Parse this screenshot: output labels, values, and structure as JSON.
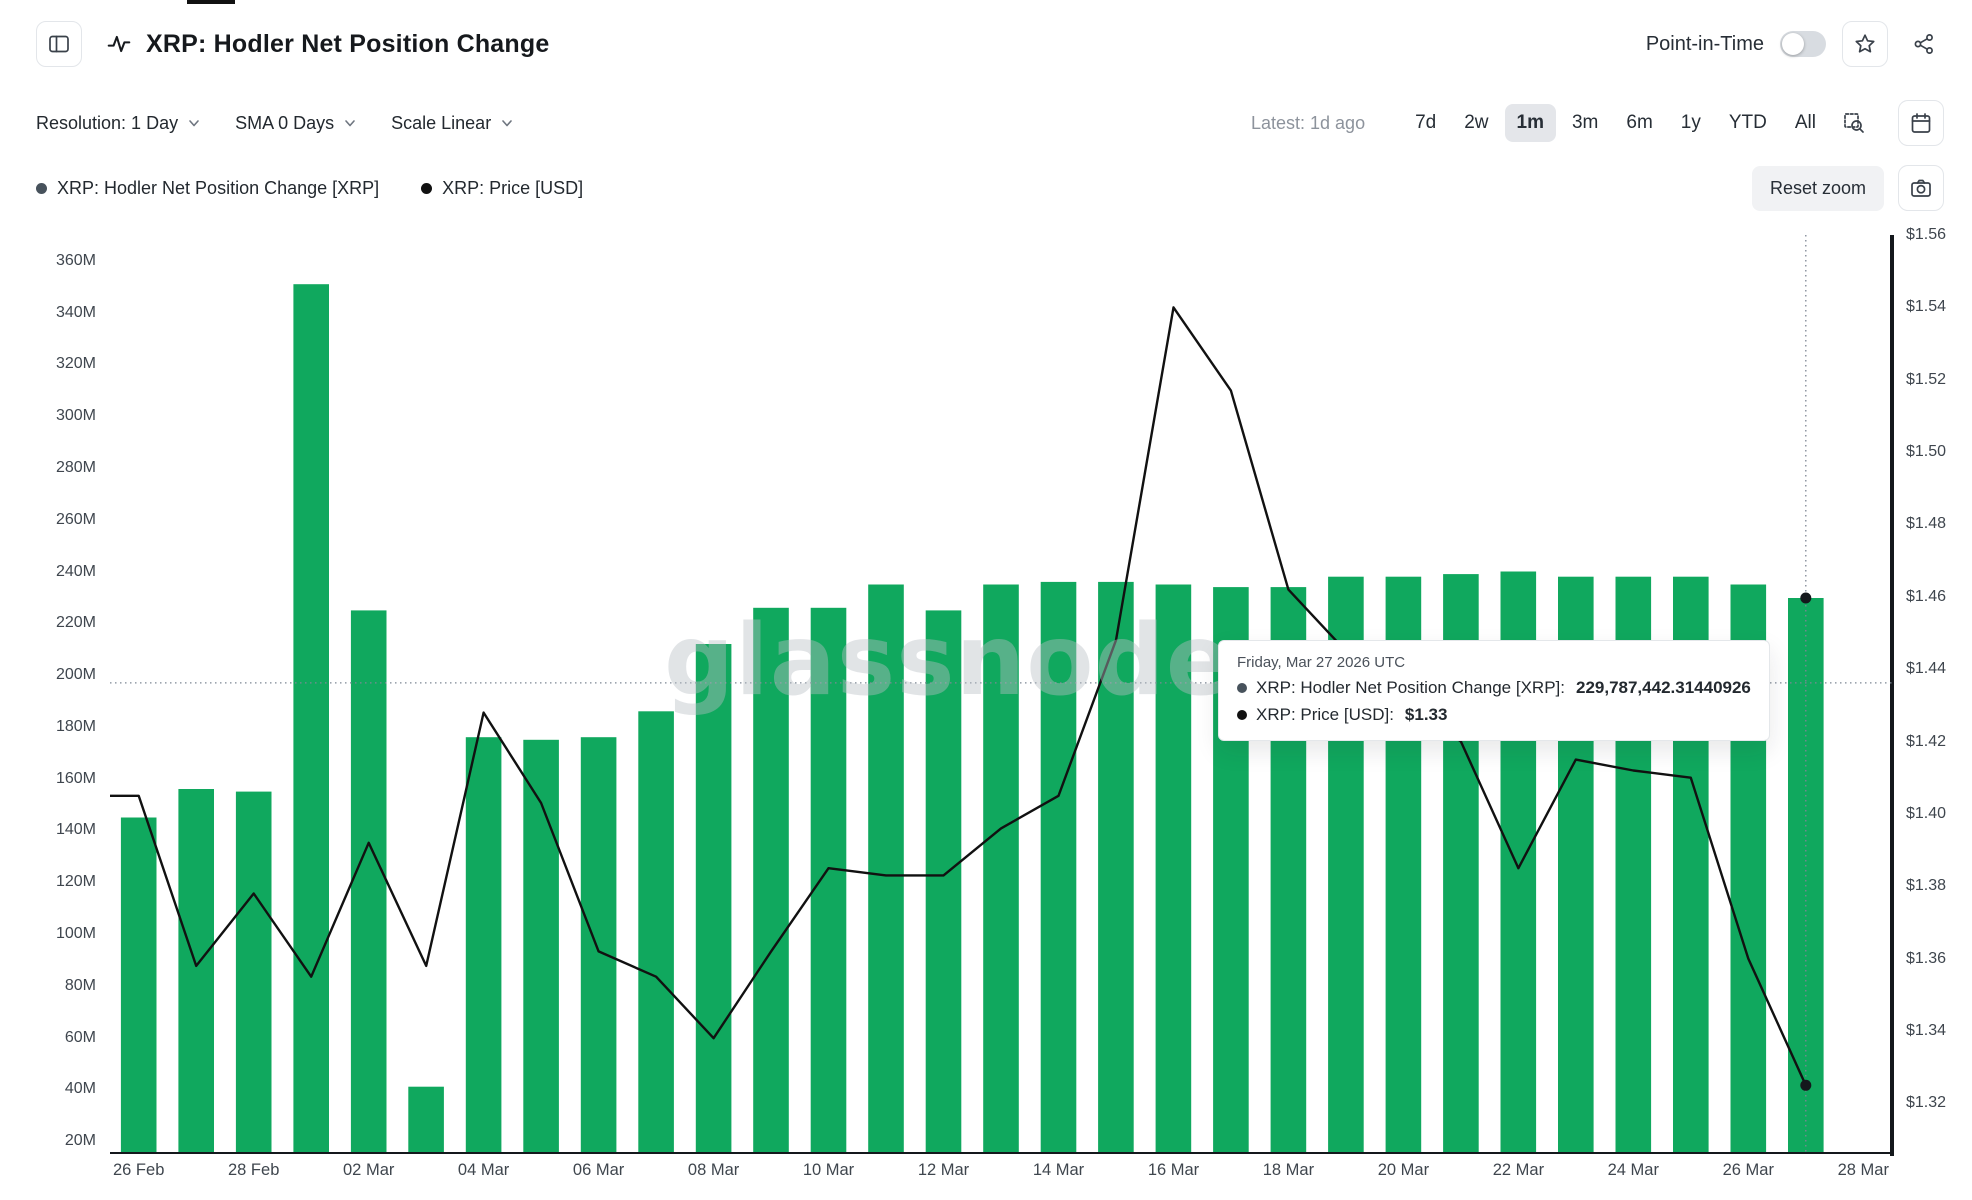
{
  "app": {
    "title": "XRP: Hodler Net Position Change",
    "point_in_time_label": "Point-in-Time"
  },
  "toolbar": {
    "resolution": "Resolution: 1 Day",
    "sma": "SMA 0 Days",
    "scale": "Scale Linear",
    "latest": "Latest: 1d ago",
    "ranges": [
      "7d",
      "2w",
      "1m",
      "3m",
      "6m",
      "1y",
      "YTD",
      "All"
    ],
    "active_range": "1m"
  },
  "legend": [
    {
      "label": "XRP: Hodler Net Position Change [XRP]",
      "color": "#47525c"
    },
    {
      "label": "XRP: Price [USD]",
      "color": "#111111"
    }
  ],
  "actions": {
    "reset_zoom": "Reset zoom"
  },
  "tooltip": {
    "title": "Friday, Mar 27 2026 UTC",
    "rows": [
      {
        "dot_color": "#47525c",
        "label": "XRP: Hodler Net Position Change [XRP]:",
        "value": "229,787,442.31440926"
      },
      {
        "dot_color": "#111111",
        "label": "XRP: Price [USD]:",
        "value": "$1.33"
      }
    ]
  },
  "watermark": "glassnode",
  "chart_data": {
    "type": "bar",
    "grid": false,
    "legend_position": "top-left",
    "x_slots": 31,
    "categories": [
      "26 Feb",
      "27 Feb",
      "28 Feb",
      "01 Mar",
      "02 Mar",
      "03 Mar",
      "04 Mar",
      "05 Mar",
      "06 Mar",
      "07 Mar",
      "08 Mar",
      "09 Mar",
      "10 Mar",
      "11 Mar",
      "12 Mar",
      "13 Mar",
      "14 Mar",
      "15 Mar",
      "16 Mar",
      "17 Mar",
      "18 Mar",
      "19 Mar",
      "20 Mar",
      "21 Mar",
      "22 Mar",
      "23 Mar",
      "24 Mar",
      "25 Mar",
      "26 Mar",
      "27 Mar"
    ],
    "x_axis_labels": [
      {
        "index": 0,
        "label": "26 Feb"
      },
      {
        "index": 2,
        "label": "28 Feb"
      },
      {
        "index": 4,
        "label": "02 Mar"
      },
      {
        "index": 6,
        "label": "04 Mar"
      },
      {
        "index": 8,
        "label": "06 Mar"
      },
      {
        "index": 10,
        "label": "08 Mar"
      },
      {
        "index": 12,
        "label": "10 Mar"
      },
      {
        "index": 14,
        "label": "12 Mar"
      },
      {
        "index": 16,
        "label": "14 Mar"
      },
      {
        "index": 18,
        "label": "16 Mar"
      },
      {
        "index": 20,
        "label": "18 Mar"
      },
      {
        "index": 22,
        "label": "20 Mar"
      },
      {
        "index": 24,
        "label": "22 Mar"
      },
      {
        "index": 26,
        "label": "24 Mar"
      },
      {
        "index": 28,
        "label": "26 Mar"
      },
      {
        "index": 30,
        "label": "28 Mar"
      }
    ],
    "series": [
      {
        "name": "XRP: Hodler Net Position Change [XRP]",
        "type": "bar",
        "axis": "left",
        "color": "#10a85e",
        "values_millions": [
          145,
          156,
          155,
          351,
          225,
          41,
          176,
          175,
          176,
          186,
          212,
          226,
          226,
          235,
          225,
          235,
          236,
          236,
          235,
          234,
          234,
          238,
          238,
          239,
          240,
          238,
          238,
          238,
          235,
          229.78744231440925
        ]
      },
      {
        "name": "XRP: Price [USD]",
        "type": "line",
        "axis": "right",
        "color": "#111111",
        "values_usd": [
          1.405,
          1.358,
          1.378,
          1.355,
          1.392,
          1.358,
          1.428,
          1.403,
          1.362,
          1.355,
          1.338,
          1.362,
          1.385,
          1.383,
          1.383,
          1.396,
          1.405,
          1.448,
          1.54,
          1.517,
          1.462,
          1.445,
          1.432,
          1.42,
          1.385,
          1.415,
          1.412,
          1.41,
          1.36,
          1.325
        ]
      }
    ],
    "left_axis": {
      "min_millions": 15,
      "max_millions": 370,
      "ticks": [
        {
          "v": 20,
          "label": "20M"
        },
        {
          "v": 40,
          "label": "40M"
        },
        {
          "v": 60,
          "label": "60M"
        },
        {
          "v": 80,
          "label": "80M"
        },
        {
          "v": 100,
          "label": "100M"
        },
        {
          "v": 120,
          "label": "120M"
        },
        {
          "v": 140,
          "label": "140M"
        },
        {
          "v": 160,
          "label": "160M"
        },
        {
          "v": 180,
          "label": "180M"
        },
        {
          "v": 200,
          "label": "200M"
        },
        {
          "v": 220,
          "label": "220M"
        },
        {
          "v": 240,
          "label": "240M"
        },
        {
          "v": 260,
          "label": "260M"
        },
        {
          "v": 280,
          "label": "280M"
        },
        {
          "v": 300,
          "label": "300M"
        },
        {
          "v": 320,
          "label": "320M"
        },
        {
          "v": 340,
          "label": "340M"
        },
        {
          "v": 360,
          "label": "360M"
        }
      ]
    },
    "right_axis": {
      "min": 1.306,
      "max": 1.56,
      "ticks": [
        {
          "v": 1.32,
          "label": "$1.32"
        },
        {
          "v": 1.34,
          "label": "$1.34"
        },
        {
          "v": 1.36,
          "label": "$1.36"
        },
        {
          "v": 1.38,
          "label": "$1.38"
        },
        {
          "v": 1.4,
          "label": "$1.40"
        },
        {
          "v": 1.42,
          "label": "$1.42"
        },
        {
          "v": 1.44,
          "label": "$1.44"
        },
        {
          "v": 1.46,
          "label": "$1.46"
        },
        {
          "v": 1.48,
          "label": "$1.48"
        },
        {
          "v": 1.5,
          "label": "$1.50"
        },
        {
          "v": 1.52,
          "label": "$1.52"
        },
        {
          "v": 1.54,
          "label": "$1.54"
        },
        {
          "v": 1.56,
          "label": "$1.56"
        }
      ]
    },
    "crosshair": {
      "x_index": 29,
      "h_value_millions": 197
    },
    "markers": [
      {
        "x_index": 29,
        "axis": "left",
        "value": 229.78744231440925,
        "series": "XRP: Hodler Net Position Change [XRP]"
      },
      {
        "x_index": 29,
        "axis": "right",
        "value": 1.325,
        "series": "XRP: Price [USD]"
      }
    ]
  }
}
